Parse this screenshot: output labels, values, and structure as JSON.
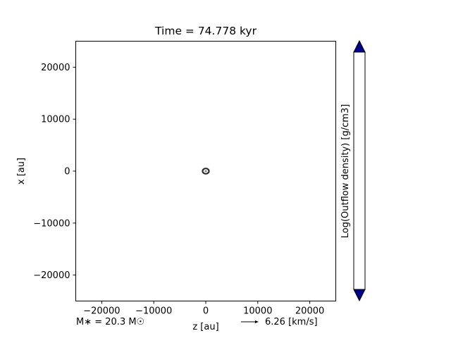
{
  "chart_data": {
    "type": "scatter",
    "title": "Time = 74.778 kyr",
    "xlabel": "z [au]",
    "ylabel": "x [au]",
    "xlim": [
      -25000,
      25000
    ],
    "ylim": [
      -25000,
      25000
    ],
    "xticks": [
      -20000,
      -10000,
      0,
      10000,
      20000
    ],
    "yticks": [
      -20000,
      -10000,
      0,
      10000,
      20000
    ],
    "xtick_labels": [
      "−20000",
      "−10000",
      "0",
      "10000",
      "20000"
    ],
    "ytick_labels": [
      "−20000",
      "−10000",
      "0",
      "10000",
      "20000"
    ],
    "grid": false,
    "points": [
      {
        "x": 0,
        "y": 0
      }
    ],
    "colorbar": {
      "label": "Log(Outflow density) [g/cm3]",
      "extend": "both",
      "extend_color": "#00008b"
    },
    "annotations": {
      "stellar_mass": "M∗ = 20.3 M☉",
      "velocity_key": "6.26 [km/s]"
    }
  }
}
